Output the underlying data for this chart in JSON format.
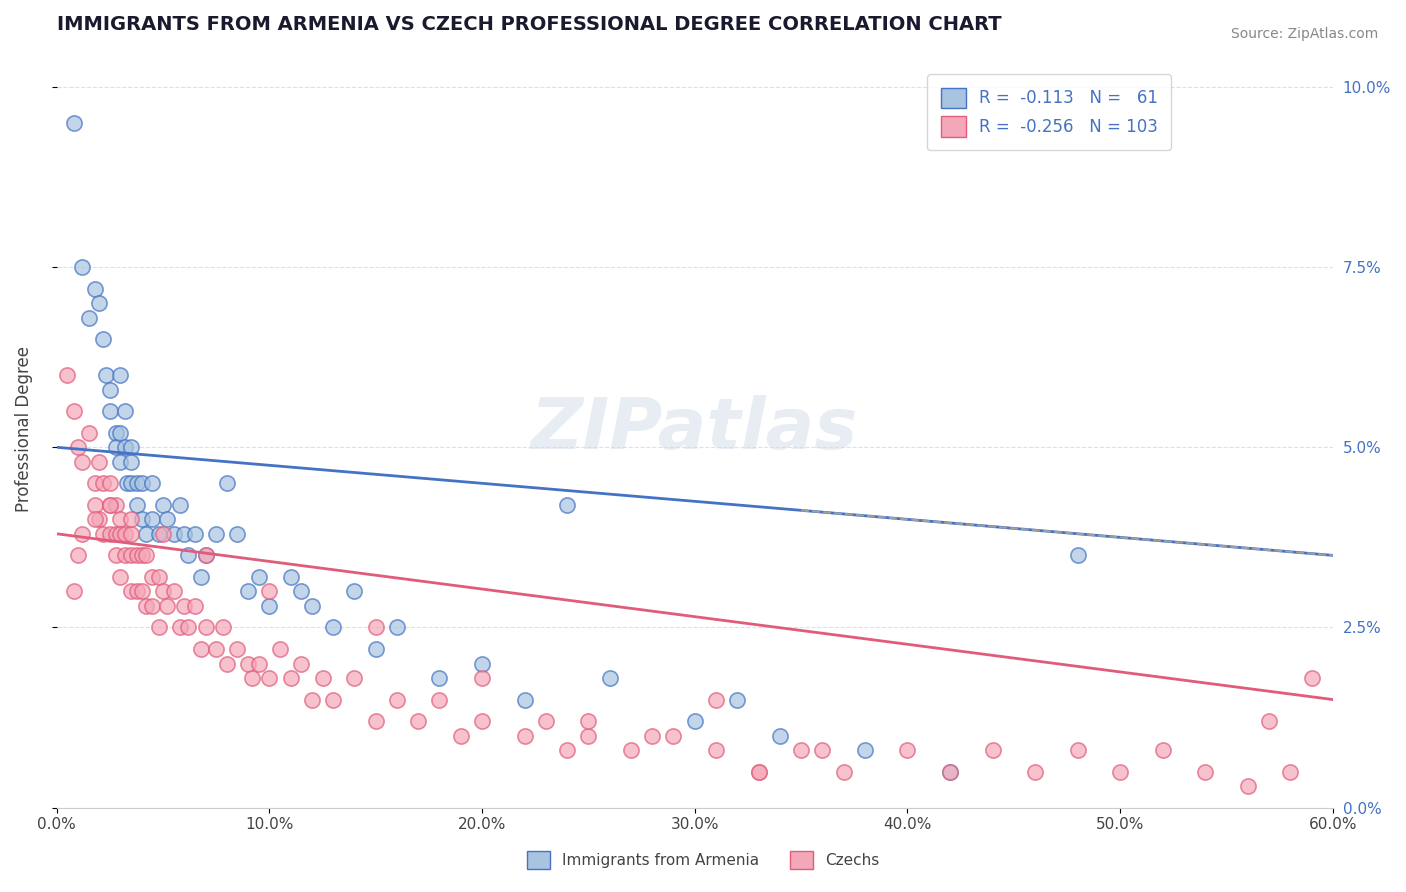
{
  "title": "IMMIGRANTS FROM ARMENIA VS CZECH PROFESSIONAL DEGREE CORRELATION CHART",
  "source": "Source: ZipAtlas.com",
  "xlabel": "",
  "ylabel": "Professional Degree",
  "xlim": [
    0.0,
    0.6
  ],
  "ylim": [
    0.0,
    0.105
  ],
  "xticks": [
    0.0,
    0.1,
    0.2,
    0.3,
    0.4,
    0.5,
    0.6
  ],
  "xticklabels": [
    "0.0%",
    "10.0%",
    "20.0%",
    "30.0%",
    "40.0%",
    "50.0%",
    "60.0%"
  ],
  "yticks_right": [
    0.0,
    0.025,
    0.05,
    0.075,
    0.1
  ],
  "yticklabels_right": [
    "0.0%",
    "2.5%",
    "5.0%",
    "7.5%",
    "10.0%"
  ],
  "armenia_r": -0.113,
  "armenia_n": 61,
  "czech_r": -0.256,
  "czech_n": 103,
  "armenia_color": "#a8c4e0",
  "czech_color": "#f4a7b9",
  "armenia_line_color": "#4472c4",
  "czech_line_color": "#e05c7a",
  "dashed_line_color": "#a0a0a0",
  "background_color": "#ffffff",
  "grid_color": "#d0d8e8",
  "title_color": "#1a1a2e",
  "watermark": "ZIPatlas",
  "armenia_x": [
    0.008,
    0.012,
    0.015,
    0.018,
    0.02,
    0.022,
    0.023,
    0.025,
    0.025,
    0.028,
    0.028,
    0.03,
    0.03,
    0.03,
    0.032,
    0.032,
    0.033,
    0.035,
    0.035,
    0.035,
    0.038,
    0.038,
    0.04,
    0.04,
    0.042,
    0.045,
    0.045,
    0.048,
    0.05,
    0.052,
    0.055,
    0.058,
    0.06,
    0.062,
    0.065,
    0.068,
    0.07,
    0.075,
    0.08,
    0.085,
    0.09,
    0.095,
    0.1,
    0.11,
    0.115,
    0.12,
    0.13,
    0.14,
    0.15,
    0.16,
    0.18,
    0.2,
    0.22,
    0.24,
    0.26,
    0.3,
    0.32,
    0.34,
    0.38,
    0.42,
    0.48
  ],
  "armenia_y": [
    0.095,
    0.075,
    0.068,
    0.072,
    0.07,
    0.065,
    0.06,
    0.058,
    0.055,
    0.052,
    0.05,
    0.06,
    0.052,
    0.048,
    0.055,
    0.05,
    0.045,
    0.05,
    0.048,
    0.045,
    0.045,
    0.042,
    0.045,
    0.04,
    0.038,
    0.045,
    0.04,
    0.038,
    0.042,
    0.04,
    0.038,
    0.042,
    0.038,
    0.035,
    0.038,
    0.032,
    0.035,
    0.038,
    0.045,
    0.038,
    0.03,
    0.032,
    0.028,
    0.032,
    0.03,
    0.028,
    0.025,
    0.03,
    0.022,
    0.025,
    0.018,
    0.02,
    0.015,
    0.042,
    0.018,
    0.012,
    0.015,
    0.01,
    0.008,
    0.005,
    0.035
  ],
  "czech_x": [
    0.005,
    0.008,
    0.01,
    0.012,
    0.015,
    0.018,
    0.018,
    0.02,
    0.02,
    0.022,
    0.022,
    0.025,
    0.025,
    0.025,
    0.028,
    0.028,
    0.028,
    0.03,
    0.03,
    0.03,
    0.032,
    0.032,
    0.035,
    0.035,
    0.035,
    0.038,
    0.038,
    0.04,
    0.04,
    0.042,
    0.042,
    0.045,
    0.045,
    0.048,
    0.048,
    0.05,
    0.052,
    0.055,
    0.058,
    0.06,
    0.062,
    0.065,
    0.068,
    0.07,
    0.075,
    0.078,
    0.08,
    0.085,
    0.09,
    0.092,
    0.095,
    0.1,
    0.105,
    0.11,
    0.115,
    0.12,
    0.125,
    0.13,
    0.14,
    0.15,
    0.16,
    0.17,
    0.18,
    0.19,
    0.2,
    0.22,
    0.23,
    0.24,
    0.25,
    0.27,
    0.29,
    0.31,
    0.33,
    0.35,
    0.37,
    0.4,
    0.42,
    0.44,
    0.46,
    0.48,
    0.5,
    0.52,
    0.54,
    0.56,
    0.58,
    0.33,
    0.36,
    0.28,
    0.31,
    0.25,
    0.2,
    0.15,
    0.1,
    0.07,
    0.05,
    0.035,
    0.025,
    0.018,
    0.012,
    0.01,
    0.008,
    0.57,
    0.59
  ],
  "czech_y": [
    0.06,
    0.055,
    0.05,
    0.048,
    0.052,
    0.045,
    0.042,
    0.048,
    0.04,
    0.045,
    0.038,
    0.045,
    0.042,
    0.038,
    0.042,
    0.038,
    0.035,
    0.04,
    0.038,
    0.032,
    0.038,
    0.035,
    0.038,
    0.035,
    0.03,
    0.035,
    0.03,
    0.035,
    0.03,
    0.035,
    0.028,
    0.032,
    0.028,
    0.032,
    0.025,
    0.03,
    0.028,
    0.03,
    0.025,
    0.028,
    0.025,
    0.028,
    0.022,
    0.025,
    0.022,
    0.025,
    0.02,
    0.022,
    0.02,
    0.018,
    0.02,
    0.018,
    0.022,
    0.018,
    0.02,
    0.015,
    0.018,
    0.015,
    0.018,
    0.012,
    0.015,
    0.012,
    0.015,
    0.01,
    0.012,
    0.01,
    0.012,
    0.008,
    0.01,
    0.008,
    0.01,
    0.008,
    0.005,
    0.008,
    0.005,
    0.008,
    0.005,
    0.008,
    0.005,
    0.008,
    0.005,
    0.008,
    0.005,
    0.003,
    0.005,
    0.005,
    0.008,
    0.01,
    0.015,
    0.012,
    0.018,
    0.025,
    0.03,
    0.035,
    0.038,
    0.04,
    0.042,
    0.04,
    0.038,
    0.035,
    0.03,
    0.012,
    0.018
  ]
}
